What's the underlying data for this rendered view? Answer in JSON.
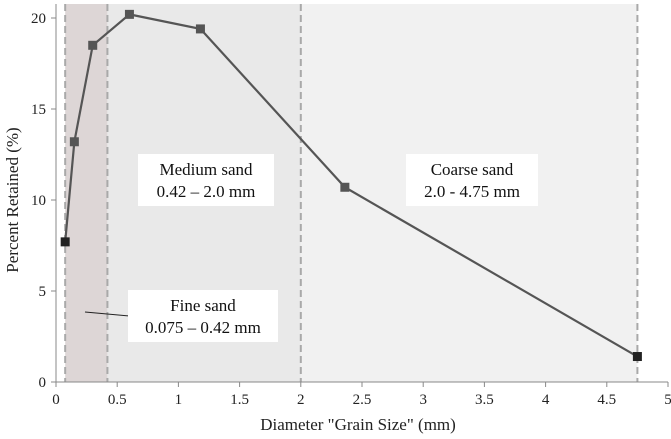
{
  "chart_data": {
    "type": "line",
    "xlabel": "Diameter \"Grain Size\" (mm)",
    "ylabel": "Percent Retained (%)",
    "xlim": [
      0,
      5
    ],
    "ylim": [
      0,
      20
    ],
    "x_ticks": [
      "0",
      "0.5",
      "1",
      "1.5",
      "2",
      "2.5",
      "3",
      "3.5",
      "4",
      "4.5",
      "5"
    ],
    "y_ticks": [
      "0",
      "5",
      "10",
      "15",
      "20"
    ],
    "grid": false,
    "series": [
      {
        "x": [
          0.075,
          0.15,
          0.3,
          0.6,
          1.18,
          2.36,
          4.75
        ],
        "y": [
          7.7,
          13.2,
          18.5,
          20.2,
          19.4,
          10.7,
          1.4
        ]
      }
    ],
    "regions": [
      {
        "name": "fine",
        "x_range": [
          0.075,
          0.42
        ],
        "label_lines": [
          "Fine sand",
          "0.075 – 0.42 mm"
        ],
        "color": "#ddd6d6"
      },
      {
        "name": "medium",
        "x_range": [
          0.42,
          2.0
        ],
        "label_lines": [
          "Medium sand",
          "0.42 – 2.0 mm"
        ],
        "color": "#e9e9e9"
      },
      {
        "name": "coarse",
        "x_range": [
          2.0,
          4.75
        ],
        "label_lines": [
          "Coarse sand",
          "2.0 - 4.75 mm"
        ],
        "color": "#f1f1f1"
      }
    ],
    "line_color": "#555555",
    "marker_color": "#555555"
  }
}
